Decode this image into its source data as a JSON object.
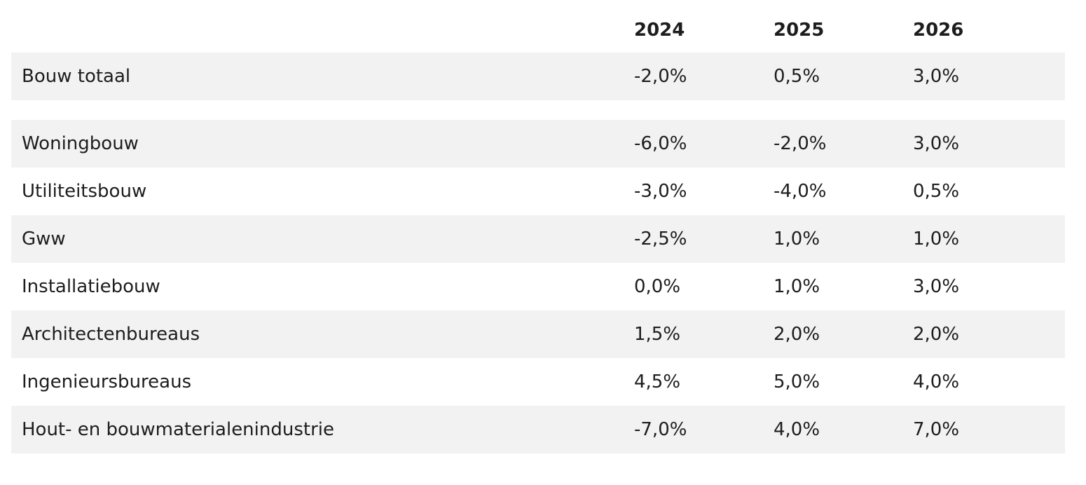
{
  "table": {
    "columns": [
      "",
      "2024",
      "2025",
      "2026"
    ],
    "rows": [
      {
        "label": "Bouw totaal",
        "values": [
          "-2,0%",
          "0,5%",
          "3,0%"
        ]
      },
      {
        "label": "Woningbouw",
        "values": [
          "-6,0%",
          "-2,0%",
          "3,0%"
        ]
      },
      {
        "label": "Utiliteitsbouw",
        "values": [
          "-3,0%",
          "-4,0%",
          "0,5%"
        ]
      },
      {
        "label": "Gww",
        "values": [
          "-2,5%",
          "1,0%",
          "1,0%"
        ]
      },
      {
        "label": "Installatiebouw",
        "values": [
          "0,0%",
          "1,0%",
          "3,0%"
        ]
      },
      {
        "label": "Architectenbureaus",
        "values": [
          "1,5%",
          "2,0%",
          "2,0%"
        ]
      },
      {
        "label": "Ingenieursbureaus",
        "values": [
          "4,5%",
          "5,0%",
          "4,0%"
        ]
      },
      {
        "label": "Hout- en bouwmaterialenindustrie",
        "values": [
          "-7,0%",
          "4,0%",
          "7,0%"
        ]
      }
    ]
  },
  "colors": {
    "row_shade": "#f2f2f2",
    "text": "#1d1d1f"
  }
}
